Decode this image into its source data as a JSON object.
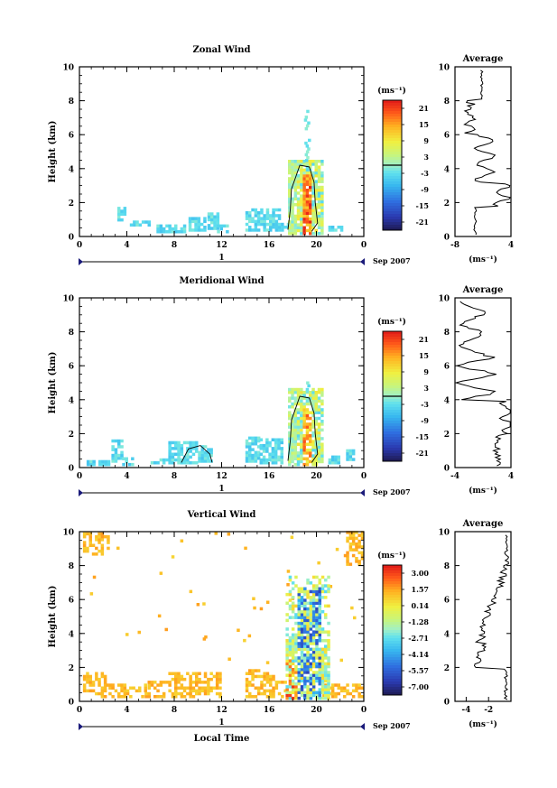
{
  "chart_data": [
    {
      "type": "heatmap",
      "title": "Zonal Wind",
      "ylabel": "Height (km)",
      "xlim": [
        0,
        24
      ],
      "ylim": [
        0,
        10
      ],
      "x_ticks": [
        "0",
        "4",
        "8",
        "12",
        "16",
        "20",
        "0"
      ],
      "y_ticks": [
        "0",
        "2",
        "4",
        "6",
        "8",
        "10"
      ],
      "date_label": "Sep 2007",
      "day_label": "1",
      "colorbar": {
        "unit": "(ms⁻¹)",
        "range": [
          -24,
          24
        ],
        "ticks": [
          "21",
          "15",
          "9",
          "3",
          "-3",
          "-9",
          "-15",
          "-21"
        ]
      },
      "average": {
        "title": "Average",
        "xlim": [
          -8,
          4
        ],
        "x_ticks": [
          "-8",
          "4"
        ],
        "xlabel": "(ms⁻¹)"
      }
    },
    {
      "type": "heatmap",
      "title": "Meridional Wind",
      "ylabel": "Height (km)",
      "xlim": [
        0,
        24
      ],
      "ylim": [
        0,
        10
      ],
      "x_ticks": [
        "0",
        "4",
        "8",
        "12",
        "16",
        "20",
        "0"
      ],
      "y_ticks": [
        "0",
        "2",
        "4",
        "6",
        "8",
        "10"
      ],
      "date_label": "Sep 2007",
      "day_label": "1",
      "colorbar": {
        "unit": "(ms⁻¹)",
        "range": [
          -24,
          24
        ],
        "ticks": [
          "21",
          "15",
          "9",
          "3",
          "-3",
          "-9",
          "-15",
          "-21"
        ]
      },
      "average": {
        "title": "Average",
        "xlim": [
          -4,
          4
        ],
        "x_ticks": [
          "-4",
          "4"
        ],
        "xlabel": "(ms⁻¹)"
      }
    },
    {
      "type": "heatmap",
      "title": "Vertical Wind",
      "ylabel": "Height (km)",
      "xlabel": "Local Time",
      "xlim": [
        0,
        24
      ],
      "ylim": [
        0,
        10
      ],
      "x_ticks": [
        "0",
        "4",
        "8",
        "12",
        "16",
        "20",
        "0"
      ],
      "y_ticks": [
        "0",
        "2",
        "4",
        "6",
        "8",
        "10"
      ],
      "date_label": "Sep 2007",
      "day_label": "1",
      "colorbar": {
        "unit": "(ms⁻¹)",
        "range": [
          -8.5,
          4.5
        ],
        "ticks": [
          "3.00",
          "1.57",
          "0.14",
          "-1.28",
          "-2.71",
          "-4.14",
          "-5.57",
          "-7.00"
        ]
      },
      "average": {
        "title": "Average",
        "xlim": [
          -5,
          0
        ],
        "x_ticks": [
          "-4",
          "-2"
        ],
        "xlabel": "(ms⁻¹)"
      }
    }
  ]
}
